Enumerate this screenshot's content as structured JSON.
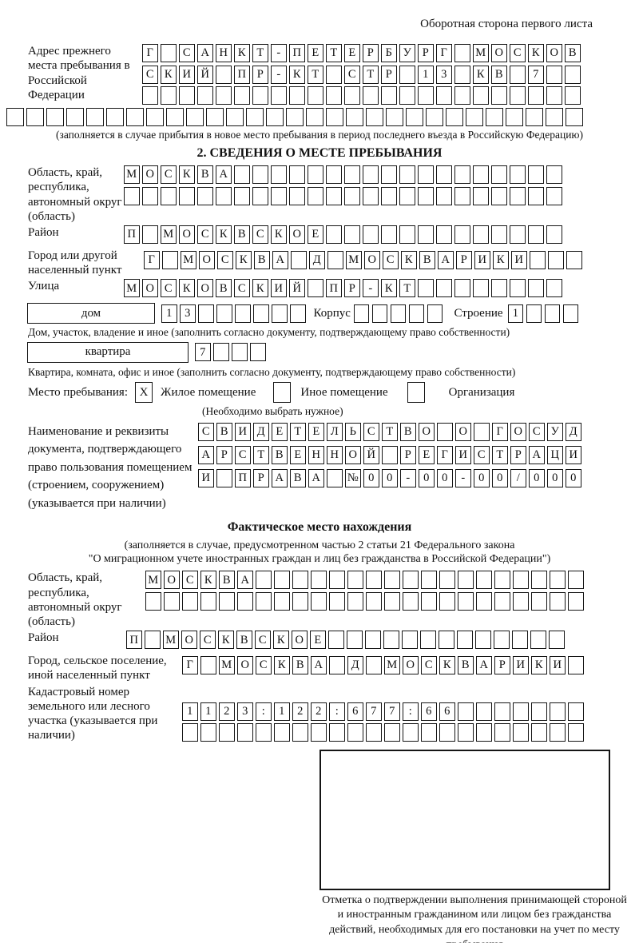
{
  "page": {
    "header_note": "Оборотная сторона первого листа"
  },
  "prev_address": {
    "label": "Адрес прежнего места пребывания в Российской Федерации",
    "rows": [
      {
        "cells": "Г САНКТ-ПЕТЕРБУРГ МОСКОВ",
        "count": 24
      },
      {
        "cells": "СКИЙ ПР-КТ СТР 13 КВ 7",
        "count": 24
      },
      {
        "cells": "",
        "count": 24
      },
      {
        "cells": "",
        "count": 29
      }
    ],
    "caption": "(заполняется в случае прибытия в новое место пребывания в период последнего въезда в Российскую Федерацию)"
  },
  "section2": {
    "title": "2. СВЕДЕНИЯ О МЕСТЕ ПРЕБЫВАНИЯ",
    "region": {
      "label": "Область, край, республика, автономный округ (область)",
      "rows": [
        {
          "cells": "МОСКВА",
          "count": 24
        },
        {
          "cells": "",
          "count": 24
        }
      ]
    },
    "district": {
      "label": "Район",
      "row": {
        "cells": "П МОСКВСКОЕ",
        "count": 24
      }
    },
    "city": {
      "label": "Город или другой населенный пункт",
      "row": {
        "cells": "Г МОСКВА Д МОСКВАРИКИ",
        "count": 24
      }
    },
    "street": {
      "label": "Улица",
      "row": {
        "cells": "МОСКОВСКИЙ ПР-КТ",
        "count": 24
      }
    },
    "house": {
      "box_label": "дом",
      "house_cells": {
        "cells": "13",
        "count": 8
      },
      "korpus_label": "Корпус",
      "korpus_cells": {
        "cells": "",
        "count": 5
      },
      "stroenie_label": "Строение",
      "stroenie_cells": {
        "cells": "1",
        "count": 4
      },
      "caption": "Дом, участок, владение и иное (заполнить согласно документу, подтверждающему право собственности)"
    },
    "apartment": {
      "box_label": "квартира",
      "cells": {
        "cells": "7",
        "count": 4
      },
      "caption": "Квартира, комната, офис и иное (заполнить согласно документу, подтверждающему право собственности)"
    },
    "stay_type": {
      "label": "Место пребывания:",
      "options": [
        {
          "label": "Жилое помещение",
          "mark": "X"
        },
        {
          "label": "Иное помещение",
          "mark": ""
        },
        {
          "label": "Организация",
          "mark": ""
        }
      ],
      "note": "(Необходимо выбрать нужное)"
    },
    "document": {
      "label": "Наименование и реквизиты документа, подтверждающего право пользования помещением (строением, сооружением) (указывается при наличии)",
      "rows": [
        {
          "cells": "СВИДЕТЕЛЬСТВО О ГОСУД",
          "count": 21
        },
        {
          "cells": "АРСТВЕННОЙ РЕГИСТРАЦИ",
          "count": 21
        },
        {
          "cells": "И ПРАВА №00-00-00/000",
          "count": 21
        }
      ]
    }
  },
  "actual_location": {
    "title": "Фактическое место нахождения",
    "caption_line1": "(заполняется в случае, предусмотренном частью 2 статьи 21 Федерального закона",
    "caption_line2": "\"О миграционном учете иностранных граждан и лиц без гражданства в Российской Федерации\")",
    "region": {
      "label": "Область, край, республика, автономный округ (область)",
      "rows": [
        {
          "cells": "МОСКВА",
          "count": 24
        },
        {
          "cells": "",
          "count": 24
        }
      ]
    },
    "district": {
      "label": "Район",
      "row": {
        "cells": "П МОСКВСКОЕ",
        "count": 24
      }
    },
    "city": {
      "label": "Город, сельское поселение, иной населенный пункт",
      "row": {
        "cells": "Г МОСКВА Д МОСКВАРИКИ",
        "count": 22
      }
    },
    "cadastral": {
      "label": "Кадастровый номер земельного или лесного участка (указывается при наличии)",
      "rows": [
        {
          "cells": "1123:122:677:66",
          "count": 22
        },
        {
          "cells": "",
          "count": 22
        }
      ]
    },
    "stamp_caption": "Отметка о подтверждении выполнения принимающей стороной и иностранным гражданином или лицом без гражданства действий, необходимых для его постановки на учет по месту пребывания"
  }
}
